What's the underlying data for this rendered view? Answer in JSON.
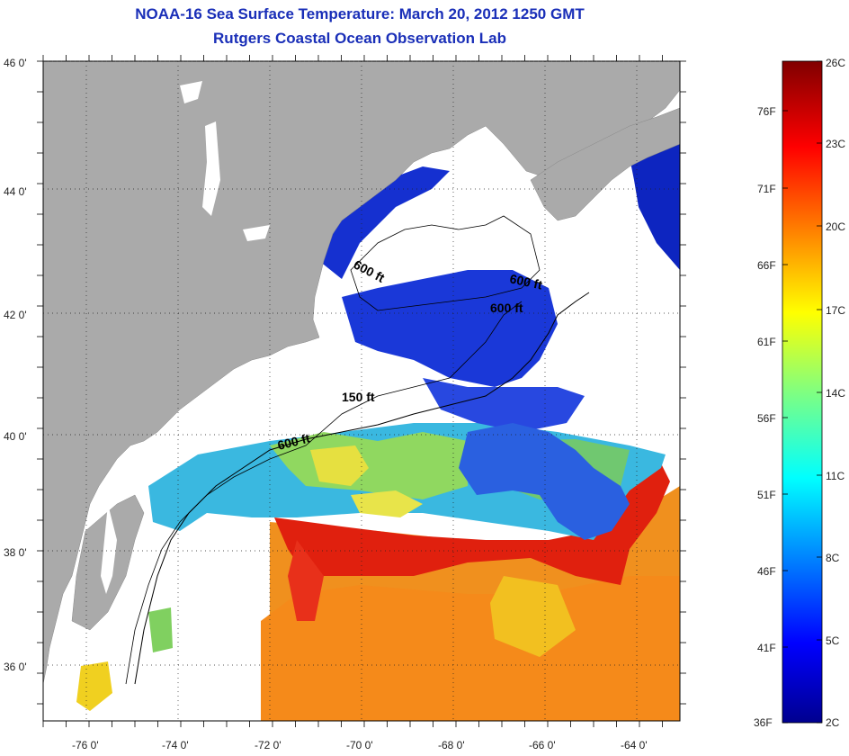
{
  "title_line1": "NOAA-16 Sea Surface Temperature:  March 20, 2012 1250 GMT",
  "title_line2": "Rutgers Coastal Ocean Observation Lab",
  "map": {
    "lat_ticks": [
      "46 0'",
      "44 0'",
      "42 0'",
      "40 0'",
      "38 0'",
      "36 0'"
    ],
    "lon_ticks": [
      "-76 0'",
      "-74 0'",
      "-72 0'",
      "-70 0'",
      "-68 0'",
      "-66 0'",
      "-64 0'"
    ],
    "contour_labels": [
      "600 ft",
      "600 ft",
      "600 ft",
      "150 ft",
      "600 ft"
    ],
    "colors": {
      "land": "#aaaaaa",
      "no_data": "#ffffff",
      "cold": "#1530d8",
      "cool": "#33aaee",
      "mid": "#e8e040",
      "warm": "#f08a20",
      "hot": "#e02010"
    }
  },
  "colorbar": {
    "fahrenheit_labels": [
      "76F",
      "71F",
      "66F",
      "61F",
      "56F",
      "51F",
      "46F",
      "41F",
      "36F"
    ],
    "celsius_labels": [
      "26C",
      "23C",
      "20C",
      "17C",
      "14C",
      "11C",
      "8C",
      "5C",
      "2C"
    ],
    "range_f": [
      36,
      79
    ],
    "range_c": [
      2,
      26
    ],
    "colormap": "jet"
  }
}
